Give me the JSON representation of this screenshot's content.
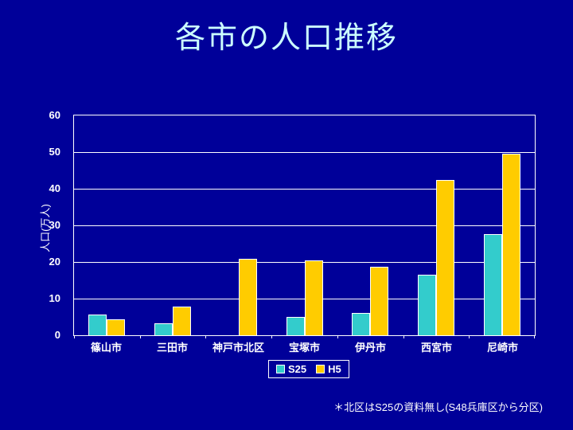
{
  "slide": {
    "title": "各市の人口推移",
    "footnote": "＊北区はS25の資料無し(S48兵庫区から分区)"
  },
  "colors": {
    "background": "#000099",
    "title_text": "#CCFFFF",
    "text": "#FFFFFF",
    "gridline": "#FFFFFF",
    "axis_frame": "#FFFFFF",
    "bar_border": "#FFFFFF",
    "series_s25": "#33CCCC",
    "series_h5": "#FFCC00"
  },
  "chart_data": {
    "type": "bar",
    "title": "各市の人口推移",
    "categories": [
      "篠山市",
      "三田市",
      "神戸市北区",
      "宝塚市",
      "伊丹市",
      "西宮市",
      "尼崎市"
    ],
    "series": [
      {
        "name": "S25",
        "color": "#33CCCC",
        "values": [
          5.7,
          3.2,
          null,
          5.0,
          6.0,
          16.6,
          27.7
        ]
      },
      {
        "name": "H5",
        "color": "#FFCC00",
        "values": [
          4.4,
          7.9,
          20.8,
          20.5,
          18.8,
          42.4,
          49.5
        ]
      }
    ],
    "xlabel": "",
    "ylabel": "人口(万人)",
    "ylim": [
      0,
      60
    ],
    "ytick_step": 10,
    "grid": true,
    "legend_position": "bottom",
    "note": "＊北区はS25の資料無し(S48兵庫区から分区)"
  }
}
